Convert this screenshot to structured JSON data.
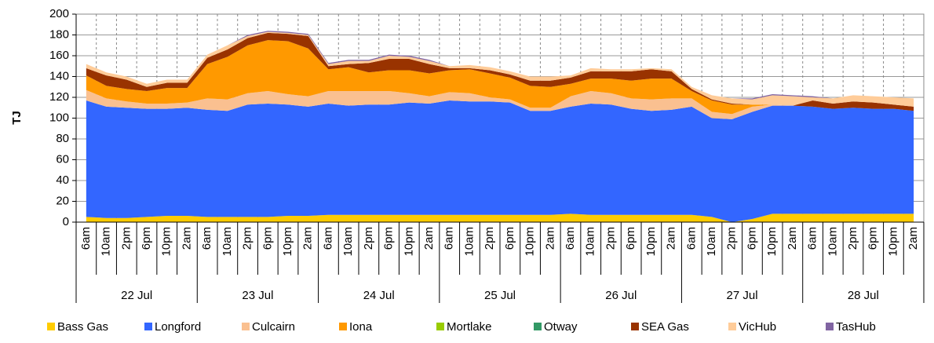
{
  "chart_data": {
    "type": "stacked-area",
    "y_label": "TJ",
    "categories": [
      "6am",
      "10am",
      "2pm",
      "6pm",
      "10pm",
      "2am",
      "6am",
      "10am",
      "2pm",
      "6pm",
      "10pm",
      "2am",
      "6am",
      "10am",
      "2pm",
      "6pm",
      "10pm",
      "2am",
      "6am",
      "10am",
      "2pm",
      "6pm",
      "10pm",
      "2am",
      "6am",
      "10am",
      "2pm",
      "6pm",
      "10pm",
      "2am",
      "6am",
      "10am",
      "2pm",
      "6pm",
      "10pm",
      "2am",
      "6am",
      "10am",
      "2pm",
      "6pm",
      "10pm",
      "2am"
    ],
    "groups": [
      "22 Jul",
      "23 Jul",
      "24 Jul",
      "25 Jul",
      "26 Jul",
      "27 Jul",
      "28 Jul"
    ],
    "ylim": [
      0,
      200
    ],
    "yticks": [
      0,
      20,
      40,
      60,
      80,
      100,
      120,
      140,
      160,
      180,
      200
    ],
    "grid": true,
    "legend": "bottom",
    "series": [
      {
        "name": "Bass Gas",
        "color": "#ffcc00",
        "values": [
          5,
          4,
          4,
          5,
          6,
          6,
          5,
          5,
          5,
          5,
          6,
          6,
          7,
          7,
          7,
          7,
          7,
          7,
          7,
          7,
          7,
          7,
          7,
          7,
          8,
          7,
          7,
          7,
          7,
          7,
          7,
          5,
          0,
          3,
          8,
          8,
          8,
          8,
          8,
          8,
          8,
          8
        ]
      },
      {
        "name": "Longford",
        "color": "#3366ff",
        "values": [
          112,
          107,
          106,
          104,
          103,
          104,
          103,
          102,
          108,
          109,
          107,
          105,
          107,
          105,
          106,
          106,
          108,
          107,
          110,
          109,
          109,
          108,
          100,
          100,
          103,
          107,
          106,
          102,
          100,
          101,
          104,
          95,
          99,
          103,
          104,
          104,
          103,
          101,
          102,
          101,
          101,
          99
        ]
      },
      {
        "name": "Culcairn",
        "color": "#fac090",
        "values": [
          10,
          8,
          6,
          5,
          5,
          5,
          11,
          11,
          11,
          12,
          10,
          10,
          12,
          14,
          13,
          13,
          9,
          7,
          8,
          8,
          4,
          3,
          3,
          3,
          10,
          12,
          11,
          10,
          11,
          11,
          8,
          6,
          5,
          5,
          1,
          0,
          0,
          0,
          0,
          0,
          0,
          0
        ]
      },
      {
        "name": "Iona",
        "color": "#ff9900",
        "values": [
          14,
          12,
          12,
          12,
          15,
          14,
          33,
          41,
          46,
          49,
          51,
          46,
          21,
          23,
          18,
          20,
          22,
          22,
          21,
          23,
          23,
          21,
          21,
          20,
          12,
          12,
          14,
          17,
          20,
          19,
          7,
          11,
          9,
          2,
          0,
          0,
          0,
          0,
          0,
          0,
          0,
          0
        ]
      },
      {
        "name": "Mortlake",
        "color": "#99cc00",
        "values": [
          0,
          0,
          0,
          0,
          0,
          0,
          0,
          0,
          0,
          0,
          0,
          0,
          0,
          0,
          0,
          0,
          0,
          0,
          0,
          0,
          0,
          0,
          0,
          0,
          0,
          0,
          0,
          0,
          0,
          0,
          0,
          0,
          0,
          0,
          0,
          0,
          0,
          0,
          0,
          0,
          0,
          0
        ]
      },
      {
        "name": "Otway",
        "color": "#339966",
        "values": [
          0,
          0,
          0,
          0,
          0,
          0,
          0,
          0,
          0,
          0,
          0,
          0,
          0,
          0,
          0,
          0,
          0,
          0,
          0,
          0,
          0,
          0,
          0,
          0,
          0,
          0,
          0,
          0,
          0,
          0,
          0,
          0,
          0,
          0,
          0,
          0,
          0,
          0,
          0,
          0,
          0,
          0
        ]
      },
      {
        "name": "SEA Gas",
        "color": "#993300",
        "values": [
          7,
          10,
          9,
          4,
          5,
          5,
          6,
          7,
          7,
          7,
          7,
          12,
          3,
          3,
          9,
          11,
          11,
          9,
          2,
          1,
          3,
          3,
          5,
          6,
          6,
          7,
          7,
          9,
          9,
          7,
          2,
          1,
          1,
          0,
          0,
          0,
          6,
          5,
          6,
          6,
          4,
          4
        ]
      },
      {
        "name": "VicHub",
        "color": "#ffcc99",
        "values": [
          4,
          3,
          3,
          3,
          3,
          3,
          3,
          4,
          2,
          1,
          1,
          1,
          2,
          3,
          2,
          3,
          2,
          3,
          2,
          3,
          3,
          3,
          4,
          4,
          2,
          3,
          2,
          2,
          1,
          2,
          2,
          4,
          5,
          5,
          9,
          9,
          3,
          5,
          6,
          6,
          7,
          8
        ]
      },
      {
        "name": "TasHub",
        "color": "#8064a2",
        "values": [
          0,
          0,
          0,
          0,
          0,
          0,
          0,
          0,
          1,
          1,
          1,
          1,
          1,
          1,
          1,
          1,
          1,
          1,
          0,
          0,
          0,
          0,
          0,
          0,
          0,
          0,
          0,
          0,
          0,
          0,
          0,
          0,
          0,
          1,
          1,
          1,
          1,
          0,
          0,
          0,
          0,
          0
        ]
      }
    ]
  }
}
